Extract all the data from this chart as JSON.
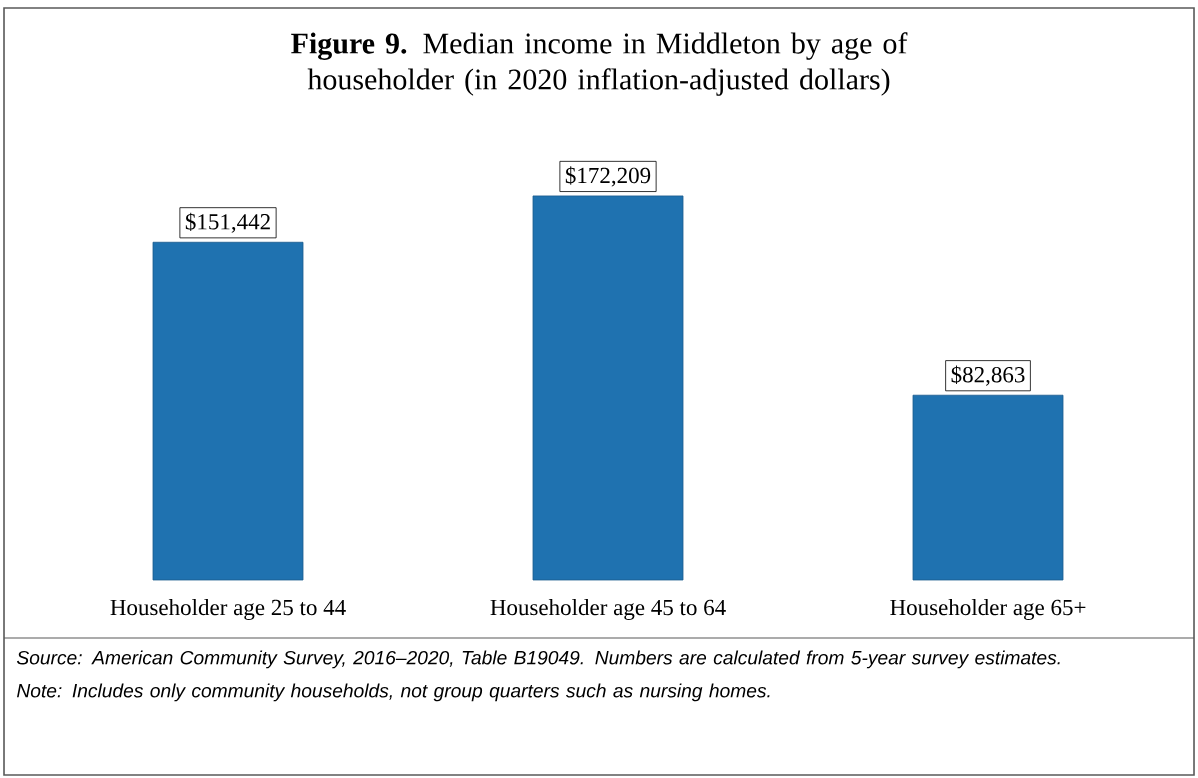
{
  "chart_data": {
    "type": "bar",
    "title": "**Figure 9.** Median income in Middleton by age of householder (in 2020 inflation-adjusted dollars)",
    "categories": [
      "Householder age 25 to 44",
      "Householder age 45 to 64",
      "Householder age 65+"
    ],
    "values": [
      151442,
      172209,
      82863
    ],
    "value_labels": [
      "$151,442",
      "$172,209",
      "$82,863"
    ],
    "color": "#1f72b0",
    "annotations": [
      "Source: American Community Survey, 2016–2020, Table B19049. Numbers are calculated from 5-year survey estimates.",
      "Note: Includes only community households, not group quarters such as nursing homes."
    ]
  }
}
